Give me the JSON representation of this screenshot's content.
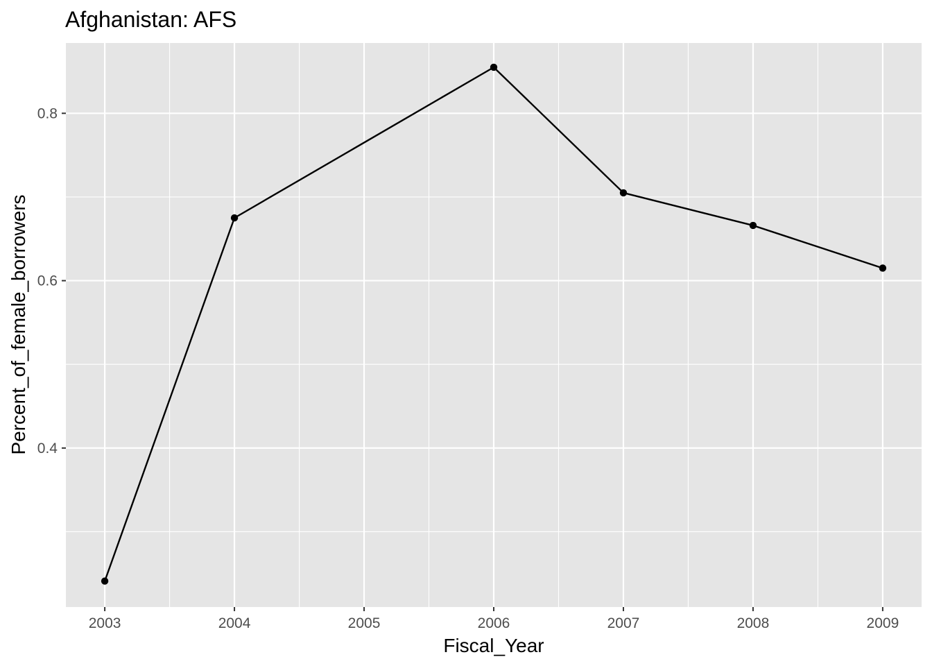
{
  "chart_data": {
    "type": "line",
    "title": "Afghanistan:  AFS",
    "xlabel": "Fiscal_Year",
    "ylabel": "Percent_of_female_borrowers",
    "x": [
      2003,
      2004,
      2005,
      2006,
      2007,
      2008,
      2009
    ],
    "x_ticks": [
      "2003",
      "2004",
      "2005",
      "2006",
      "2007",
      "2008",
      "2009"
    ],
    "y_ticks": [
      "0.4",
      "0.6",
      "0.8"
    ],
    "series": [
      {
        "points": [
          {
            "x": 2003,
            "y": 0.241
          },
          {
            "x": 2004,
            "y": 0.675
          },
          {
            "x": 2006,
            "y": 0.855
          },
          {
            "x": 2007,
            "y": 0.705
          },
          {
            "x": 2008,
            "y": 0.666
          },
          {
            "x": 2009,
            "y": 0.615
          }
        ]
      }
    ],
    "xlim": [
      2002.7,
      2009.3
    ],
    "ylim": [
      0.21,
      0.884
    ],
    "grid": true,
    "colors": {
      "panel_background": "#e5e5e5",
      "grid": "#ffffff",
      "line": "#000000",
      "point": "#000000",
      "tick_text": "#4d4d4d",
      "tick_mark": "#333333"
    }
  }
}
